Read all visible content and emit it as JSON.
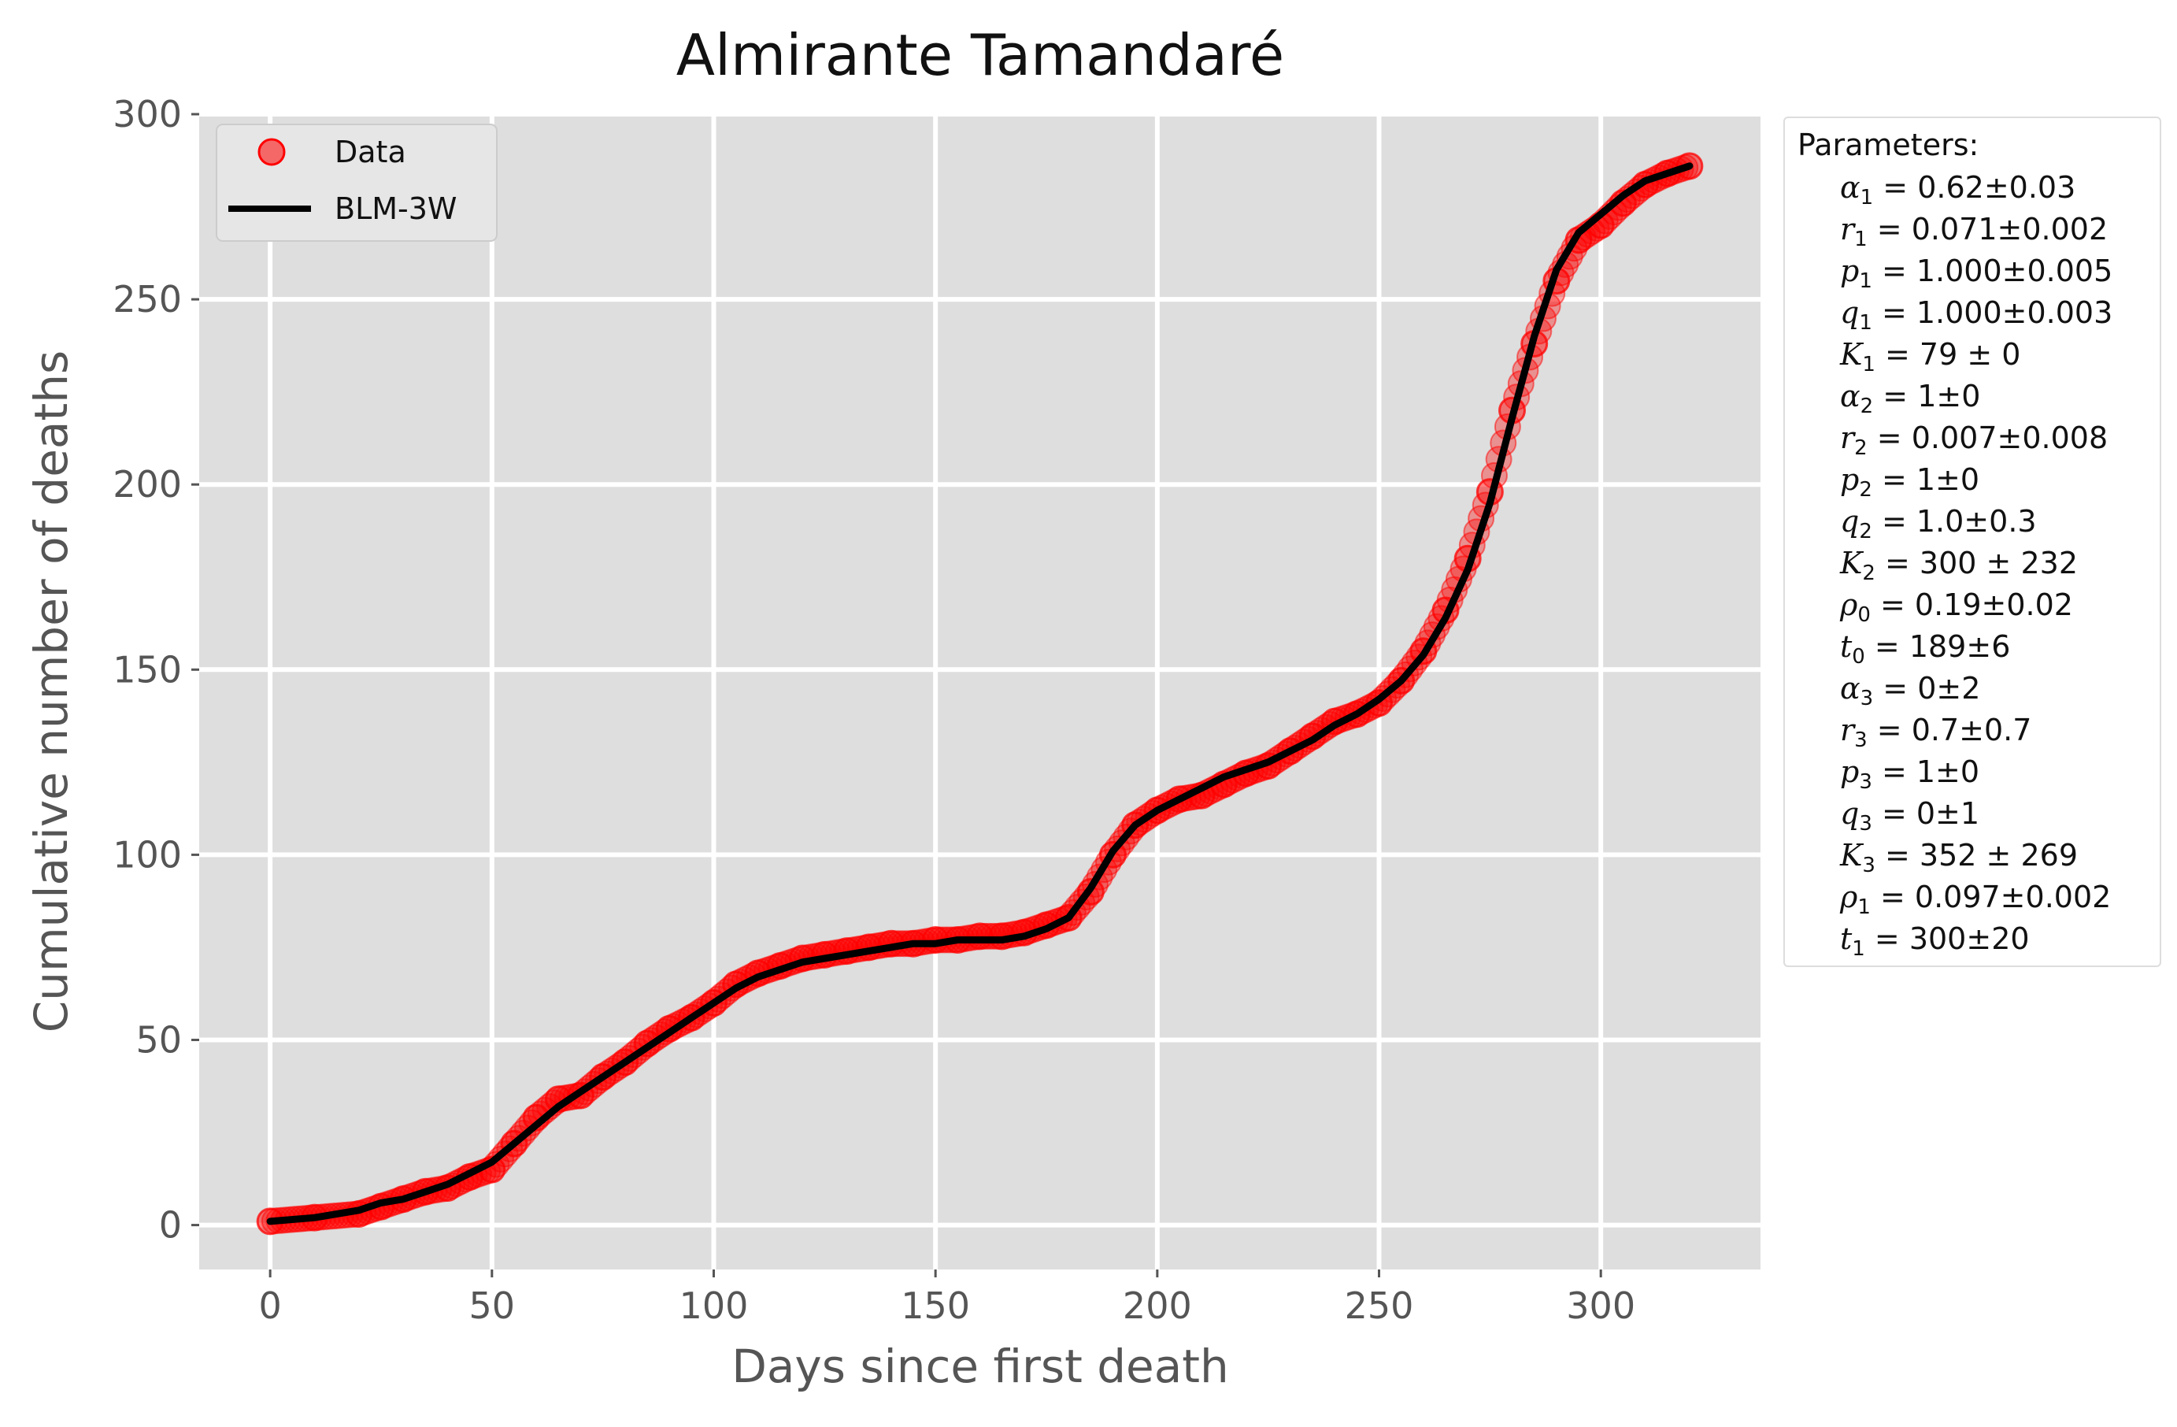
{
  "chart_data": {
    "type": "scatter",
    "title": "Almirante Tamandaré",
    "xlabel": "Days since first death",
    "ylabel": "Cumulative number of deaths",
    "xlim": [
      -16,
      336
    ],
    "ylim": [
      -12,
      300
    ],
    "xticks": [
      0,
      50,
      100,
      150,
      200,
      250,
      300
    ],
    "yticks": [
      0,
      50,
      100,
      150,
      200,
      250,
      300
    ],
    "grid": true,
    "legend_position": "top-left",
    "colors": {
      "data": "#ff0000",
      "fit": "#000000",
      "axes_bg": "#dedede",
      "grid": "#ffffff"
    },
    "series": [
      {
        "name": "Data",
        "kind": "points",
        "x": [
          0,
          10,
          20,
          25,
          30,
          35,
          40,
          45,
          50,
          55,
          60,
          65,
          70,
          75,
          80,
          85,
          90,
          95,
          100,
          105,
          110,
          115,
          120,
          125,
          130,
          135,
          140,
          145,
          150,
          155,
          160,
          165,
          170,
          175,
          180,
          185,
          190,
          195,
          200,
          205,
          210,
          215,
          220,
          225,
          230,
          235,
          240,
          245,
          250,
          255,
          260,
          265,
          270,
          275,
          280,
          285,
          290,
          295,
          300,
          305,
          310,
          315,
          320
        ],
        "y": [
          1,
          2,
          3,
          5,
          7,
          9,
          10,
          13,
          15,
          22,
          29,
          34,
          35,
          40,
          44,
          49,
          53,
          56,
          60,
          65,
          68,
          70,
          72,
          73,
          74,
          75,
          76,
          76,
          77,
          77,
          78,
          78,
          79,
          81,
          83,
          90,
          100,
          108,
          112,
          115,
          116,
          119,
          122,
          124,
          128,
          132,
          136,
          138,
          141,
          147,
          155,
          166,
          180,
          198,
          220,
          238,
          255,
          266,
          270,
          276,
          281,
          284,
          286
        ]
      },
      {
        "name": "BLM-3W",
        "kind": "line",
        "x": [
          0,
          10,
          20,
          25,
          30,
          35,
          40,
          45,
          50,
          55,
          60,
          65,
          70,
          75,
          80,
          85,
          90,
          95,
          100,
          105,
          110,
          115,
          120,
          125,
          130,
          135,
          140,
          145,
          150,
          155,
          160,
          165,
          170,
          175,
          180,
          185,
          190,
          195,
          200,
          205,
          210,
          215,
          220,
          225,
          230,
          235,
          240,
          245,
          250,
          255,
          260,
          265,
          270,
          275,
          280,
          285,
          290,
          295,
          300,
          305,
          310,
          315,
          320
        ],
        "y": [
          1,
          2,
          4,
          6,
          7,
          9,
          11,
          14,
          17,
          22,
          27,
          32,
          36,
          40,
          44,
          48,
          52,
          56,
          60,
          64,
          67,
          69,
          71,
          72,
          73,
          74,
          75,
          76,
          76,
          77,
          77,
          77,
          78,
          80,
          83,
          91,
          101,
          108,
          112,
          115,
          118,
          121,
          123,
          125,
          128,
          131,
          135,
          138,
          142,
          147,
          154,
          164,
          177,
          195,
          218,
          240,
          258,
          268,
          273,
          278,
          282,
          284,
          286
        ]
      }
    ]
  },
  "parameters": {
    "title": "Parameters:",
    "items": [
      {
        "sym": "α",
        "sub": "1",
        "val": "= 0.62±0.03"
      },
      {
        "sym": "r",
        "sub": "1",
        "val": "= 0.071±0.002"
      },
      {
        "sym": "p",
        "sub": "1",
        "val": "= 1.000±0.005"
      },
      {
        "sym": "q",
        "sub": "1",
        "val": "= 1.000±0.003"
      },
      {
        "sym": "K",
        "sub": "1",
        "val": "= 79 ± 0"
      },
      {
        "sym": "α",
        "sub": "2",
        "val": "= 1±0"
      },
      {
        "sym": "r",
        "sub": "2",
        "val": "= 0.007±0.008"
      },
      {
        "sym": "p",
        "sub": "2",
        "val": "= 1±0"
      },
      {
        "sym": "q",
        "sub": "2",
        "val": "= 1.0±0.3"
      },
      {
        "sym": "K",
        "sub": "2",
        "val": "= 300 ± 232"
      },
      {
        "sym": "ρ",
        "sub": "0",
        "val": "= 0.19±0.02"
      },
      {
        "sym": "t",
        "sub": "0",
        "val": "= 189±6"
      },
      {
        "sym": "α",
        "sub": "3",
        "val": "= 0±2"
      },
      {
        "sym": "r",
        "sub": "3",
        "val": "= 0.7±0.7"
      },
      {
        "sym": "p",
        "sub": "3",
        "val": "= 1±0"
      },
      {
        "sym": "q",
        "sub": "3",
        "val": "= 0±1"
      },
      {
        "sym": "K",
        "sub": "3",
        "val": "= 352 ± 269"
      },
      {
        "sym": "ρ",
        "sub": "1",
        "val": "= 0.097±0.002"
      },
      {
        "sym": "t",
        "sub": "1",
        "val": "= 300±20"
      }
    ]
  }
}
